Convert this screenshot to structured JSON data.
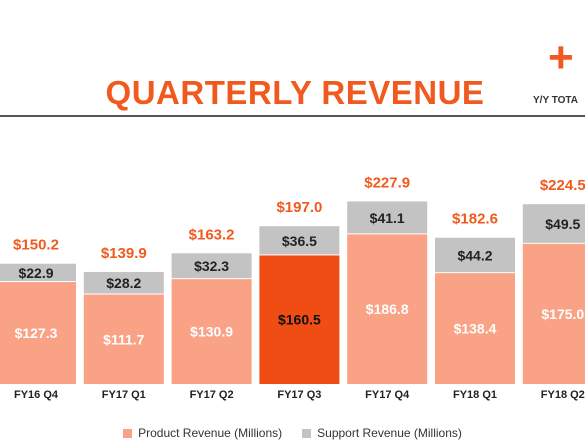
{
  "header": {
    "title": "QUARTERLY REVENUE",
    "yy_symbol": "+",
    "yy_label": "Y/Y TOTA"
  },
  "colors": {
    "accent": "#f05a1e",
    "product": "#f9a285",
    "support": "#c3c3c3",
    "highlight": "#f04d14"
  },
  "chart_data": {
    "type": "bar",
    "stacked": true,
    "title": "QUARTERLY REVENUE",
    "categories": [
      "FY16 Q4",
      "FY17 Q1",
      "FY17 Q2",
      "FY17 Q3",
      "FY17 Q4",
      "FY18 Q1",
      "FY18 Q2"
    ],
    "series": [
      {
        "name": "Product Revenue (Millions)",
        "values": [
          127.3,
          111.7,
          130.9,
          160.5,
          186.8,
          138.4,
          175.0
        ]
      },
      {
        "name": "Support Revenue (Millions)",
        "values": [
          22.9,
          28.2,
          32.3,
          36.5,
          41.1,
          44.2,
          49.5
        ]
      }
    ],
    "totals": [
      150.2,
      139.9,
      163.2,
      197.0,
      227.9,
      182.6,
      224.5
    ],
    "total_labels": [
      "$150.2",
      "$139.9",
      "$163.2",
      "$197.0",
      "$227.9",
      "$182.6",
      "$224.5"
    ],
    "product_labels": [
      "$127.3",
      "$111.7",
      "$130.9",
      "$160.5",
      "$186.8",
      "$138.4",
      "$175.0"
    ],
    "support_labels": [
      "$22.9",
      "$28.2",
      "$32.3",
      "$36.5",
      "$41.1",
      "$44.2",
      "$49.5"
    ],
    "highlight_index": 3,
    "legend_position": "bottom",
    "grid": false
  },
  "legend": {
    "product": "Product Revenue (Millions)",
    "support": "Support Revenue (Millions)"
  }
}
